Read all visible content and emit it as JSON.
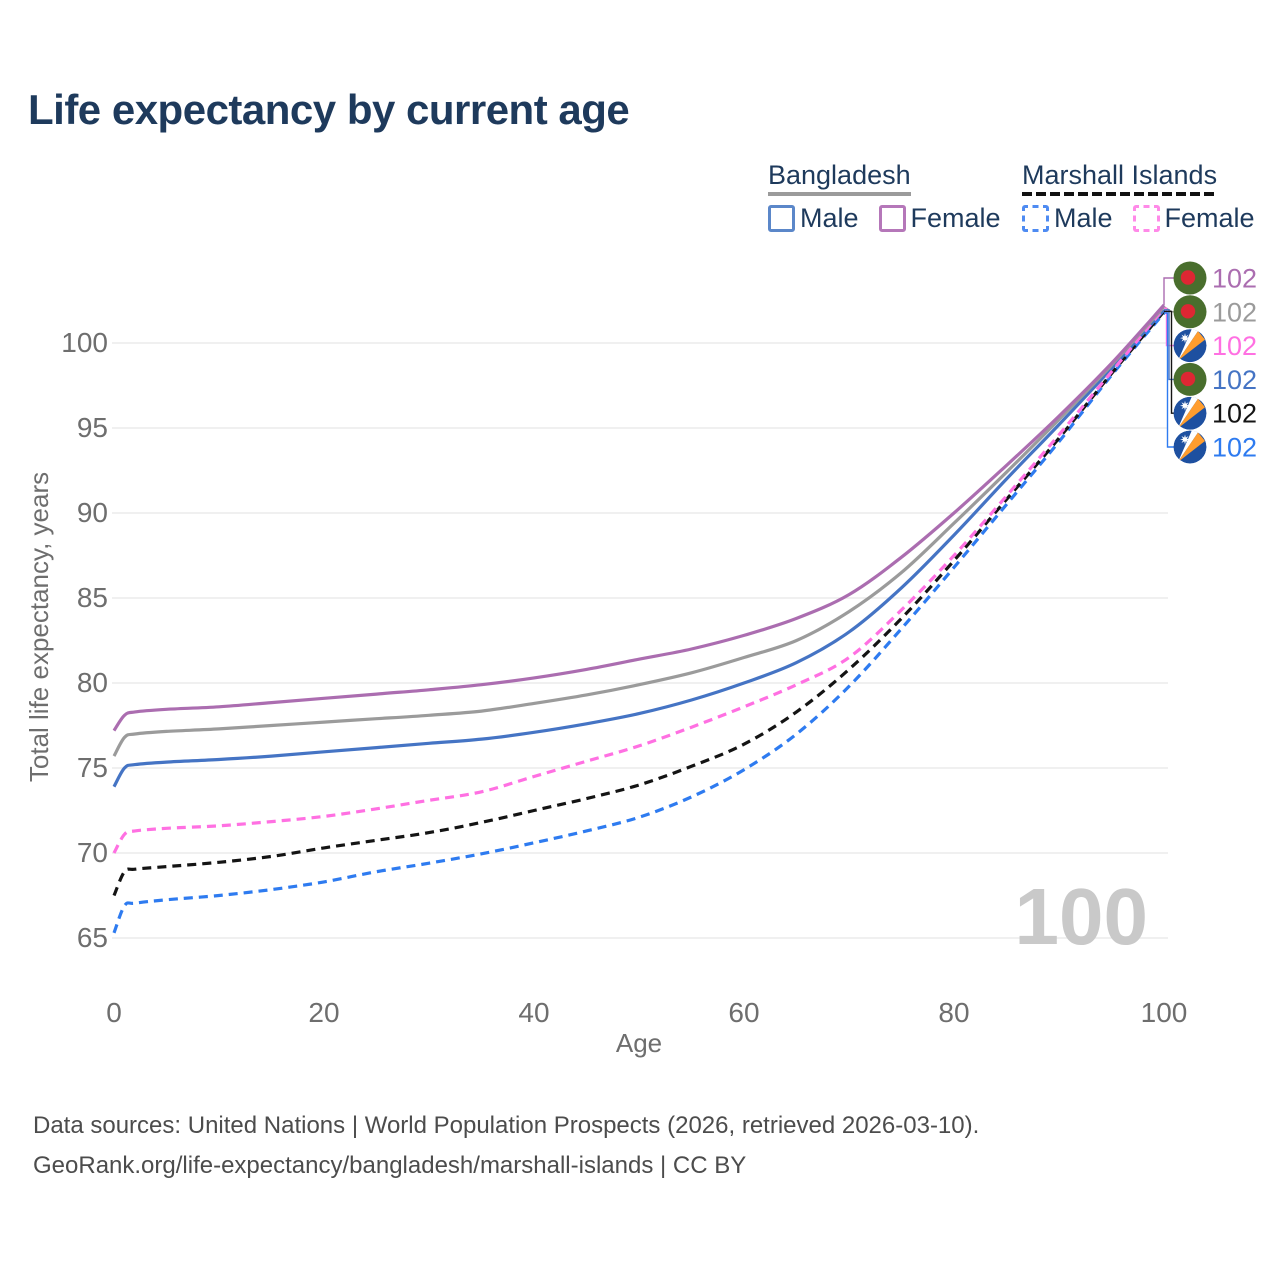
{
  "title": "Life expectancy by current age",
  "legend": {
    "groups": [
      {
        "name": "Bangladesh",
        "underline": "solid",
        "underline_color": "#9b9b9b",
        "items": [
          {
            "label": "Male",
            "color": "#5b87c9",
            "dashed": false
          },
          {
            "label": "Female",
            "color": "#b577b9",
            "dashed": false
          }
        ]
      },
      {
        "name": "Marshall Islands",
        "underline": "dashed",
        "underline_color": "#111111",
        "items": [
          {
            "label": "Male",
            "color": "#4e8bf2",
            "dashed": true
          },
          {
            "label": "Female",
            "color": "#ff8ae8",
            "dashed": true
          }
        ]
      }
    ]
  },
  "chart_data": {
    "type": "line",
    "title": "Life expectancy by current age",
    "xlabel": "Age",
    "ylabel": "Total life expectancy, years",
    "xlim": [
      0,
      100
    ],
    "ylim": [
      65,
      102
    ],
    "xticks": [
      0,
      20,
      40,
      60,
      80,
      100
    ],
    "yticks": [
      65,
      70,
      75,
      80,
      85,
      90,
      95,
      100
    ],
    "grid": "horizontal",
    "legend_position": "top-right",
    "watermark": "100",
    "x": [
      0,
      1,
      2,
      5,
      10,
      15,
      20,
      25,
      30,
      35,
      40,
      45,
      50,
      55,
      60,
      65,
      70,
      75,
      80,
      85,
      90,
      95,
      100
    ],
    "series": [
      {
        "name": "Bangladesh Female",
        "country": "Bangladesh",
        "sex": "Female",
        "color": "#ab6db0",
        "dash": "solid",
        "flag": "bd",
        "end_label": "102",
        "values": [
          77.2,
          78.1,
          78.3,
          78.45,
          78.6,
          78.85,
          79.1,
          79.35,
          79.6,
          79.9,
          80.3,
          80.8,
          81.4,
          82.0,
          82.8,
          83.8,
          85.2,
          87.4,
          90.0,
          92.8,
          95.7,
          98.8,
          102
        ]
      },
      {
        "name": "Bangladesh Total",
        "country": "Bangladesh",
        "sex": "Both",
        "color": "#9b9b9b",
        "dash": "solid",
        "flag": "bd",
        "end_label": "102",
        "values": [
          75.7,
          76.8,
          77.0,
          77.15,
          77.3,
          77.5,
          77.7,
          77.9,
          78.1,
          78.35,
          78.8,
          79.3,
          79.9,
          80.6,
          81.5,
          82.5,
          84.2,
          86.5,
          89.4,
          92.4,
          95.5,
          98.7,
          102
        ]
      },
      {
        "name": "Marshall Islands Female",
        "country": "Marshall Islands",
        "sex": "Female",
        "color": "#ff70e2",
        "dash": "dashed",
        "flag": "mh",
        "end_label": "102",
        "values": [
          70.0,
          71.1,
          71.3,
          71.45,
          71.6,
          71.85,
          72.15,
          72.6,
          73.1,
          73.6,
          74.5,
          75.4,
          76.3,
          77.4,
          78.6,
          79.9,
          81.5,
          84.3,
          87.5,
          91.0,
          94.6,
          98.3,
          102
        ]
      },
      {
        "name": "Bangladesh Male",
        "country": "Bangladesh",
        "sex": "Male",
        "color": "#4574c4",
        "dash": "solid",
        "flag": "bd",
        "end_label": "102",
        "values": [
          73.9,
          75.0,
          75.2,
          75.35,
          75.5,
          75.7,
          75.95,
          76.2,
          76.45,
          76.7,
          77.1,
          77.6,
          78.2,
          79.0,
          80.0,
          81.2,
          83.0,
          85.6,
          88.7,
          92.0,
          95.2,
          98.5,
          102
        ]
      },
      {
        "name": "Marshall Islands Total",
        "country": "Marshall Islands",
        "sex": "Both",
        "color": "#141414",
        "dash": "dashed",
        "flag": "mh",
        "end_label": "102",
        "values": [
          67.5,
          68.9,
          69.05,
          69.2,
          69.45,
          69.8,
          70.3,
          70.75,
          71.2,
          71.8,
          72.5,
          73.2,
          74.0,
          75.1,
          76.4,
          78.3,
          80.8,
          83.8,
          87.2,
          90.8,
          94.4,
          98.2,
          102
        ]
      },
      {
        "name": "Marshall Islands Male",
        "country": "Marshall Islands",
        "sex": "Male",
        "color": "#2e7bf0",
        "dash": "dashed",
        "flag": "mh",
        "end_label": "102",
        "values": [
          65.3,
          66.9,
          67.05,
          67.25,
          67.5,
          67.85,
          68.3,
          68.9,
          69.4,
          69.95,
          70.6,
          71.3,
          72.1,
          73.3,
          74.9,
          77.0,
          79.8,
          83.2,
          86.8,
          90.5,
          94.2,
          98.1,
          102
        ]
      }
    ]
  },
  "colors": {
    "title_text": "#1e3a5c",
    "axis_text": "#6e6e6e",
    "gridline": "#ebebeb",
    "watermark_text": "#c9c9c9",
    "footer_text": "#4c4c4c",
    "flag_bd_green": "#496e2d",
    "flag_bd_red": "#dd2733",
    "flag_mh_blue": "#1e50a0",
    "flag_mh_orange": "#ff9d2e"
  },
  "footer": {
    "line1": "Data sources: United Nations | World Population Prospects (2026, retrieved 2026-03-10).",
    "line2": "GeoRank.org/life-expectancy/bangladesh/marshall-islands | CC BY"
  }
}
